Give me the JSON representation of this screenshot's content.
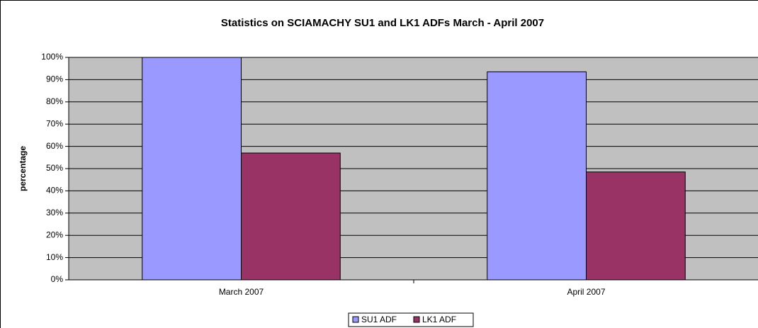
{
  "chart_data": {
    "type": "bar",
    "title": "Statistics on SCIAMACHY SU1 and LK1 ADFs March - April 2007",
    "y_label": "percentage",
    "categories": [
      "March 2007",
      "April 2007"
    ],
    "series": [
      {
        "name": "SU1 ADF",
        "color": "#9999ff",
        "values": [
          100,
          93.5
        ]
      },
      {
        "name": "LK1 ADF",
        "color": "#993366",
        "values": [
          57,
          48.5
        ]
      }
    ],
    "ylim": [
      0,
      100
    ],
    "yticks": [
      {
        "value": 0,
        "label": "0%"
      },
      {
        "value": 10,
        "label": "10%"
      },
      {
        "value": 20,
        "label": "20%"
      },
      {
        "value": 30,
        "label": "30%"
      },
      {
        "value": 40,
        "label": "40%"
      },
      {
        "value": 50,
        "label": "50%"
      },
      {
        "value": 60,
        "label": "60%"
      },
      {
        "value": 70,
        "label": "70%"
      },
      {
        "value": 80,
        "label": "80%"
      },
      {
        "value": 90,
        "label": "90%"
      },
      {
        "value": 100,
        "label": "100%"
      }
    ],
    "grid": true,
    "legend": "bottom"
  }
}
